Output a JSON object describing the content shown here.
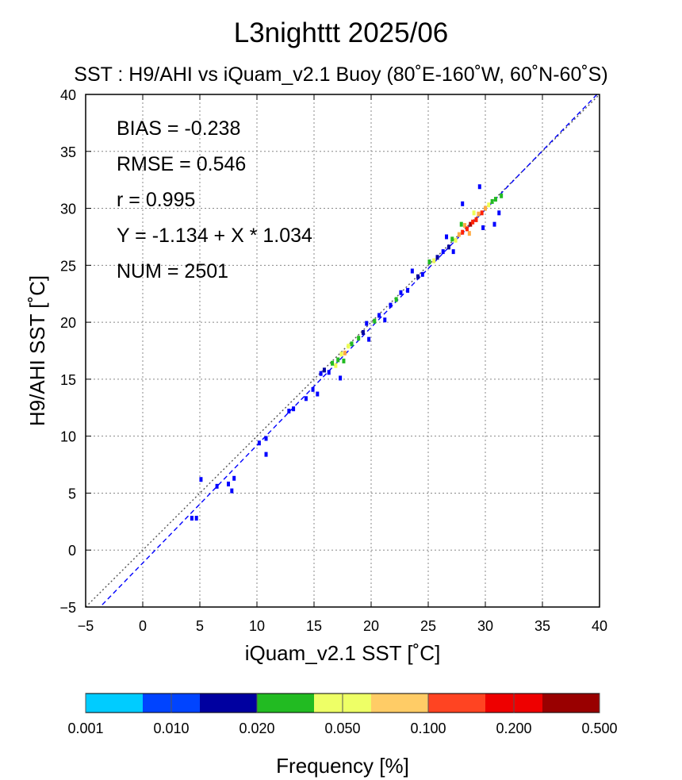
{
  "chart_data": {
    "type": "heatmap",
    "title": "L3nighttt  2025/06",
    "subtitle": "SST : H9/AHI vs iQuam_v2.1 Buoy  (80˚E-160˚W, 60˚N-60˚S)",
    "xlabel": "iQuam_v2.1 SST [˚C]",
    "ylabel": "H9/AHI SST [˚C]",
    "xlim": [
      -5,
      40
    ],
    "ylim": [
      -5,
      40
    ],
    "xticks": [
      "−5",
      "0",
      "5",
      "10",
      "15",
      "20",
      "25",
      "30",
      "35",
      "40"
    ],
    "yticks": [
      "−5",
      "0",
      "5",
      "10",
      "15",
      "20",
      "25",
      "30",
      "35",
      "40"
    ],
    "grid": true,
    "stats": [
      "BIAS = -0.238",
      "RMSE = 0.546",
      "r = 0.995",
      "Y = -1.134 + X * 1.034",
      "NUM = 2501"
    ],
    "identity_line": {
      "intercept": 0,
      "slope": 1,
      "color": "#555555"
    },
    "regression_line": {
      "intercept": -1.134,
      "slope": 1.034,
      "color": "#0000ff"
    },
    "colorbar": {
      "label": "Frequency [%]",
      "ticks": [
        "0.001",
        "0.010",
        "0.020",
        "0.050",
        "0.100",
        "0.200",
        "0.500"
      ],
      "colors": [
        "#00ccff",
        "#0044ff",
        "#0000a0",
        "#22bb22",
        "#eeff66",
        "#ffcc66",
        "#ff4422",
        "#ee0000",
        "#990000"
      ]
    },
    "points": [
      {
        "x": 4.3,
        "y": 2.8,
        "f": "blue"
      },
      {
        "x": 4.7,
        "y": 2.8,
        "f": "blue"
      },
      {
        "x": 5.1,
        "y": 6.2,
        "f": "blue"
      },
      {
        "x": 6.5,
        "y": 5.6,
        "f": "blue"
      },
      {
        "x": 7.5,
        "y": 5.8,
        "f": "blue"
      },
      {
        "x": 8.0,
        "y": 6.3,
        "f": "blue"
      },
      {
        "x": 7.8,
        "y": 5.2,
        "f": "blue"
      },
      {
        "x": 10.8,
        "y": 9.8,
        "f": "blue"
      },
      {
        "x": 10.8,
        "y": 8.4,
        "f": "blue"
      },
      {
        "x": 10.2,
        "y": 9.4,
        "f": "blue"
      },
      {
        "x": 12.8,
        "y": 12.2,
        "f": "blue"
      },
      {
        "x": 13.2,
        "y": 12.4,
        "f": "blue"
      },
      {
        "x": 14.3,
        "y": 13.3,
        "f": "blue"
      },
      {
        "x": 14.9,
        "y": 14.1,
        "f": "blue"
      },
      {
        "x": 15.3,
        "y": 13.7,
        "f": "blue"
      },
      {
        "x": 15.6,
        "y": 15.5,
        "f": "blue"
      },
      {
        "x": 15.9,
        "y": 15.8,
        "f": "navy"
      },
      {
        "x": 16.3,
        "y": 15.6,
        "f": "blue"
      },
      {
        "x": 16.6,
        "y": 16.4,
        "f": "green"
      },
      {
        "x": 16.9,
        "y": 16.2,
        "f": "yellow"
      },
      {
        "x": 17.1,
        "y": 16.7,
        "f": "green"
      },
      {
        "x": 17.4,
        "y": 17.2,
        "f": "yellow"
      },
      {
        "x": 17.7,
        "y": 17.3,
        "f": "orange"
      },
      {
        "x": 17.6,
        "y": 16.6,
        "f": "green"
      },
      {
        "x": 18.0,
        "y": 17.9,
        "f": "yellow"
      },
      {
        "x": 18.3,
        "y": 18.1,
        "f": "green"
      },
      {
        "x": 17.3,
        "y": 15.1,
        "f": "blue"
      },
      {
        "x": 18.9,
        "y": 18.6,
        "f": "green"
      },
      {
        "x": 19.3,
        "y": 19.1,
        "f": "navy"
      },
      {
        "x": 19.6,
        "y": 19.9,
        "f": "blue"
      },
      {
        "x": 19.8,
        "y": 18.5,
        "f": "blue"
      },
      {
        "x": 20.3,
        "y": 20.1,
        "f": "green"
      },
      {
        "x": 20.7,
        "y": 20.6,
        "f": "blue"
      },
      {
        "x": 21.2,
        "y": 20.2,
        "f": "blue"
      },
      {
        "x": 21.7,
        "y": 21.5,
        "f": "blue"
      },
      {
        "x": 22.2,
        "y": 22.0,
        "f": "green"
      },
      {
        "x": 22.6,
        "y": 22.6,
        "f": "blue"
      },
      {
        "x": 23.2,
        "y": 22.8,
        "f": "blue"
      },
      {
        "x": 23.6,
        "y": 24.5,
        "f": "blue"
      },
      {
        "x": 24.1,
        "y": 24.0,
        "f": "navy"
      },
      {
        "x": 24.5,
        "y": 24.2,
        "f": "blue"
      },
      {
        "x": 25.1,
        "y": 25.3,
        "f": "green"
      },
      {
        "x": 25.5,
        "y": 25.4,
        "f": "yellow"
      },
      {
        "x": 25.8,
        "y": 25.7,
        "f": "navy"
      },
      {
        "x": 26.3,
        "y": 26.2,
        "f": "blue"
      },
      {
        "x": 26.8,
        "y": 26.6,
        "f": "navy"
      },
      {
        "x": 27.1,
        "y": 27.3,
        "f": "green"
      },
      {
        "x": 27.4,
        "y": 27.2,
        "f": "yellow"
      },
      {
        "x": 27.7,
        "y": 27.7,
        "f": "orange"
      },
      {
        "x": 28.0,
        "y": 27.9,
        "f": "red"
      },
      {
        "x": 28.2,
        "y": 28.5,
        "f": "orange"
      },
      {
        "x": 28.4,
        "y": 28.2,
        "f": "red"
      },
      {
        "x": 28.7,
        "y": 28.6,
        "f": "darkred"
      },
      {
        "x": 28.9,
        "y": 28.8,
        "f": "red"
      },
      {
        "x": 29.2,
        "y": 29.0,
        "f": "red"
      },
      {
        "x": 29.4,
        "y": 29.5,
        "f": "orange"
      },
      {
        "x": 29.7,
        "y": 29.6,
        "f": "red"
      },
      {
        "x": 30.0,
        "y": 30.0,
        "f": "orange"
      },
      {
        "x": 30.3,
        "y": 30.3,
        "f": "yellow"
      },
      {
        "x": 30.6,
        "y": 30.6,
        "f": "green"
      },
      {
        "x": 30.9,
        "y": 30.8,
        "f": "green"
      },
      {
        "x": 29.5,
        "y": 31.9,
        "f": "blue"
      },
      {
        "x": 28.0,
        "y": 30.4,
        "f": "blue"
      },
      {
        "x": 30.8,
        "y": 28.6,
        "f": "blue"
      },
      {
        "x": 31.2,
        "y": 29.6,
        "f": "blue"
      },
      {
        "x": 27.2,
        "y": 26.2,
        "f": "blue"
      },
      {
        "x": 26.6,
        "y": 27.5,
        "f": "blue"
      },
      {
        "x": 29.8,
        "y": 28.3,
        "f": "blue"
      },
      {
        "x": 31.4,
        "y": 31.1,
        "f": "green"
      },
      {
        "x": 27.9,
        "y": 28.6,
        "f": "green"
      },
      {
        "x": 28.6,
        "y": 27.8,
        "f": "orange"
      },
      {
        "x": 29.0,
        "y": 29.6,
        "f": "yellow"
      }
    ]
  }
}
